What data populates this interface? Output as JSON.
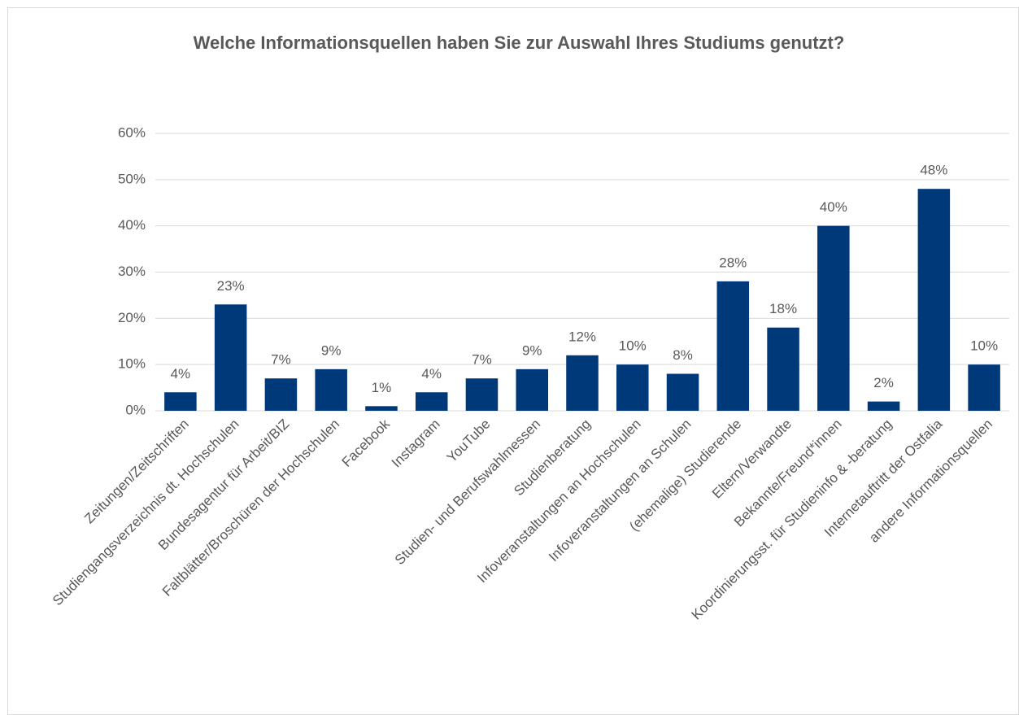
{
  "chart_data": {
    "type": "bar",
    "title": "Welche Informationsquellen haben Sie zur Auswahl Ihres Studiums genutzt?",
    "categories": [
      "Zeitungen/Zeitschriften",
      "Studiengangsverzeichnis dt. Hochschulen",
      "Bundesagentur für Arbeit/BIZ",
      "Faltblätter/Broschüren der Hochschulen",
      "Facebook",
      "Instagram",
      "YouTube",
      "Studien- und Berufswahlmessen",
      "Studienberatung",
      "Infoveranstaltungen an Hochschulen",
      "Infoveranstaltungen an Schulen",
      "(ehemalige) Studierende",
      "Eltern/Verwandte",
      "Bekannte/Freund*innen",
      "Koordinierungsst. für Studieninfo & -beratung",
      "Internetauftritt der Ostfalia",
      "andere Informationsquellen"
    ],
    "values": [
      4,
      23,
      7,
      9,
      1,
      4,
      7,
      9,
      12,
      10,
      8,
      28,
      18,
      40,
      2,
      48,
      10
    ],
    "value_labels": [
      "4%",
      "23%",
      "7%",
      "9%",
      "1%",
      "4%",
      "7%",
      "9%",
      "12%",
      "10%",
      "8%",
      "28%",
      "18%",
      "40%",
      "2%",
      "48%",
      "10%"
    ],
    "color": "#003979",
    "ylim": [
      0,
      60
    ],
    "yticks": [
      {
        "value": 0,
        "label": "0%"
      },
      {
        "value": 10,
        "label": "10%"
      },
      {
        "value": 20,
        "label": "20%"
      },
      {
        "value": 30,
        "label": "30%"
      },
      {
        "value": 40,
        "label": "40%"
      },
      {
        "value": 50,
        "label": "50%"
      },
      {
        "value": 60,
        "label": "60%"
      }
    ],
    "grid": true
  }
}
